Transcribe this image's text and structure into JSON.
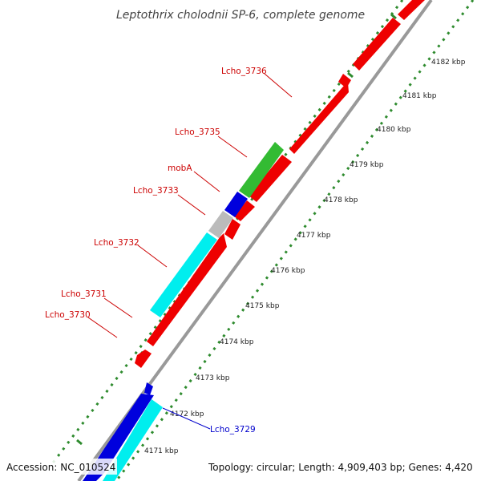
{
  "title": "Leptothrix cholodnii SP-6, complete genome",
  "accession": "Accession: NC_010524",
  "topology": "Topology: circular; Length: 4,909,403 bp; Genes: 4,420",
  "colors": {
    "backbone": "#999999",
    "dots": "#2e8b2e",
    "red": "#ee0000",
    "blue": "#0000dd",
    "cyan": "#00eeee",
    "green": "#33bb33",
    "gray": "#bbbbbb",
    "label_red": "#cc0000",
    "label_blue": "#0000cc"
  },
  "ticks": [
    "4171 kbp",
    "4172 kbp",
    "4173 kbp",
    "4174 kbp",
    "4175 kbp",
    "4176 kbp",
    "4177 kbp",
    "4178 kbp",
    "4179 kbp",
    "4180 kbp",
    "4181 kbp",
    "4182 kbp"
  ],
  "gene_labels": [
    "Lcho_3736",
    "Lcho_3735",
    "mobA",
    "Lcho_3733",
    "Lcho_3732",
    "Lcho_3731",
    "Lcho_3730",
    "Lcho_3729"
  ]
}
